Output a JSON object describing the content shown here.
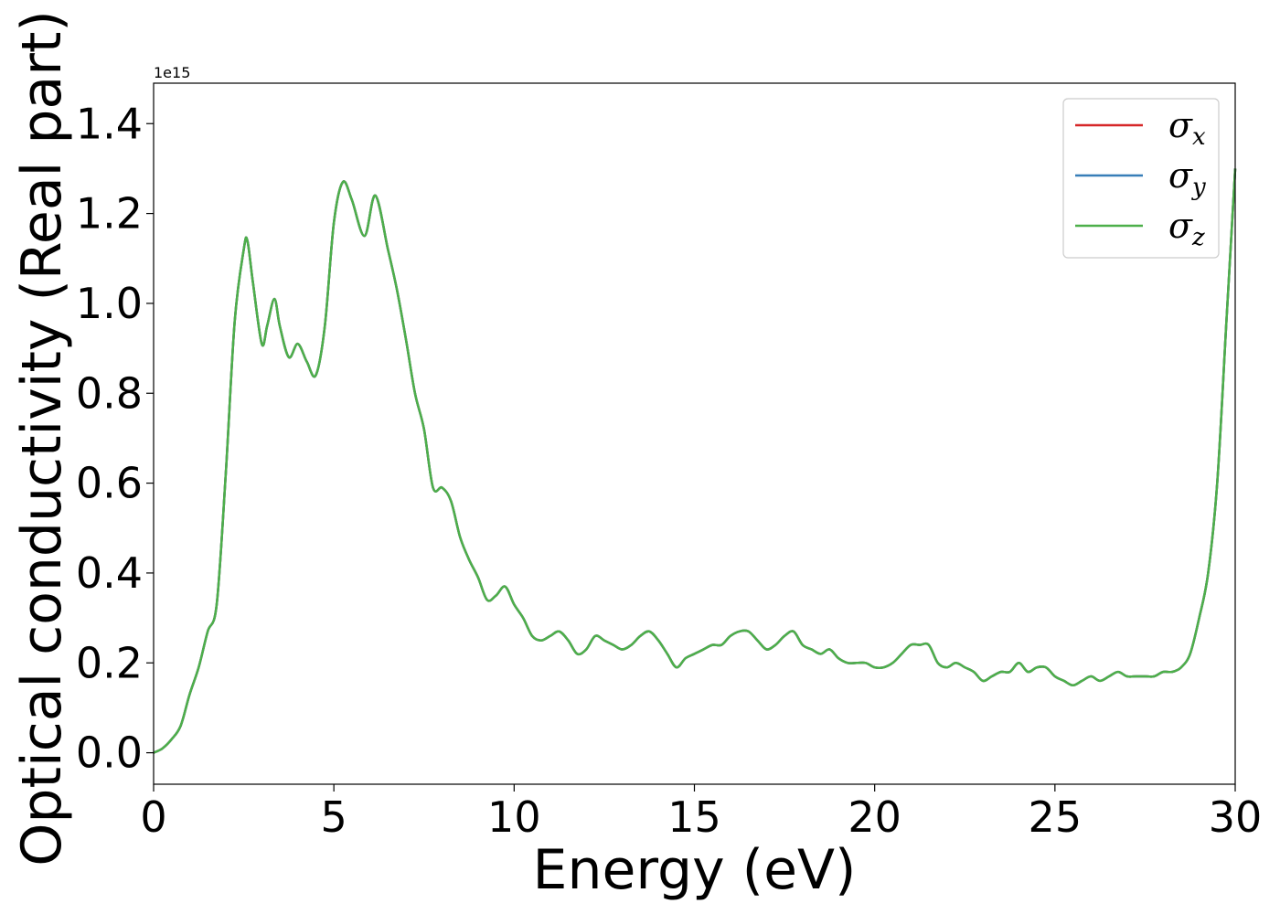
{
  "chart_data": {
    "type": "line",
    "xlabel": "Energy (eV)",
    "ylabel": "Optical conductivity (Real part)",
    "y_offset_label": "1e15",
    "xlim": [
      0,
      30
    ],
    "ylim": [
      -0.07,
      1.49
    ],
    "x_ticks": [
      0,
      5,
      10,
      15,
      20,
      25,
      30
    ],
    "x_tick_labels": [
      "0",
      "5",
      "10",
      "15",
      "20",
      "25",
      "30"
    ],
    "y_ticks": [
      0.0,
      0.2,
      0.4,
      0.6,
      0.8,
      1.0,
      1.2,
      1.4
    ],
    "y_tick_labels": [
      "0.0",
      "0.2",
      "0.4",
      "0.6",
      "0.8",
      "1.0",
      "1.2",
      "1.4"
    ],
    "grid": false,
    "legend_position": "top-right",
    "x": [
      0.0,
      0.25,
      0.5,
      0.75,
      1.0,
      1.25,
      1.5,
      1.75,
      2.0,
      2.25,
      2.5,
      2.6,
      2.75,
      3.0,
      3.15,
      3.35,
      3.5,
      3.75,
      4.0,
      4.25,
      4.5,
      4.75,
      5.0,
      5.25,
      5.5,
      5.85,
      6.15,
      6.5,
      6.75,
      7.0,
      7.25,
      7.5,
      7.75,
      8.0,
      8.25,
      8.5,
      8.75,
      9.0,
      9.25,
      9.5,
      9.75,
      10.0,
      10.25,
      10.5,
      10.75,
      11.0,
      11.25,
      11.5,
      11.75,
      12.0,
      12.25,
      12.5,
      12.75,
      13.0,
      13.25,
      13.5,
      13.75,
      14.0,
      14.25,
      14.5,
      14.75,
      15.0,
      15.25,
      15.5,
      15.75,
      16.0,
      16.25,
      16.5,
      16.75,
      17.0,
      17.25,
      17.5,
      17.75,
      18.0,
      18.25,
      18.5,
      18.75,
      19.0,
      19.25,
      19.5,
      19.75,
      20.0,
      20.25,
      20.5,
      20.75,
      21.0,
      21.25,
      21.5,
      21.75,
      22.0,
      22.25,
      22.5,
      22.75,
      23.0,
      23.25,
      23.5,
      23.75,
      24.0,
      24.25,
      24.5,
      24.75,
      25.0,
      25.25,
      25.5,
      25.75,
      26.0,
      26.25,
      26.5,
      26.75,
      27.0,
      27.25,
      27.5,
      27.75,
      28.0,
      28.25,
      28.5,
      28.75,
      29.0,
      29.25,
      29.5,
      29.75,
      30.0
    ],
    "series": [
      {
        "name": "σ",
        "sub": "x",
        "color": "#d62728",
        "values": [
          0.0,
          0.01,
          0.03,
          0.06,
          0.13,
          0.19,
          0.27,
          0.33,
          0.62,
          0.96,
          1.12,
          1.14,
          1.05,
          0.91,
          0.95,
          1.01,
          0.95,
          0.88,
          0.91,
          0.87,
          0.84,
          0.95,
          1.18,
          1.27,
          1.23,
          1.15,
          1.24,
          1.12,
          1.03,
          0.92,
          0.8,
          0.72,
          0.59,
          0.59,
          0.56,
          0.48,
          0.43,
          0.39,
          0.34,
          0.35,
          0.37,
          0.33,
          0.3,
          0.26,
          0.25,
          0.26,
          0.27,
          0.25,
          0.22,
          0.23,
          0.26,
          0.25,
          0.24,
          0.23,
          0.24,
          0.26,
          0.27,
          0.25,
          0.22,
          0.19,
          0.21,
          0.22,
          0.23,
          0.24,
          0.24,
          0.26,
          0.27,
          0.27,
          0.25,
          0.23,
          0.24,
          0.26,
          0.27,
          0.24,
          0.23,
          0.22,
          0.23,
          0.21,
          0.2,
          0.2,
          0.2,
          0.19,
          0.19,
          0.2,
          0.22,
          0.24,
          0.24,
          0.24,
          0.2,
          0.19,
          0.2,
          0.19,
          0.18,
          0.16,
          0.17,
          0.18,
          0.18,
          0.2,
          0.18,
          0.19,
          0.19,
          0.17,
          0.16,
          0.15,
          0.16,
          0.17,
          0.16,
          0.17,
          0.18,
          0.17,
          0.17,
          0.17,
          0.17,
          0.18,
          0.18,
          0.19,
          0.22,
          0.3,
          0.4,
          0.6,
          0.95,
          1.3
        ]
      },
      {
        "name": "σ",
        "sub": "y",
        "color": "#377eb8",
        "values": [
          0.0,
          0.01,
          0.03,
          0.06,
          0.13,
          0.19,
          0.27,
          0.33,
          0.62,
          0.96,
          1.12,
          1.14,
          1.05,
          0.91,
          0.95,
          1.01,
          0.95,
          0.88,
          0.91,
          0.87,
          0.84,
          0.95,
          1.18,
          1.27,
          1.23,
          1.15,
          1.24,
          1.12,
          1.03,
          0.92,
          0.8,
          0.72,
          0.59,
          0.59,
          0.56,
          0.48,
          0.43,
          0.39,
          0.34,
          0.35,
          0.37,
          0.33,
          0.3,
          0.26,
          0.25,
          0.26,
          0.27,
          0.25,
          0.22,
          0.23,
          0.26,
          0.25,
          0.24,
          0.23,
          0.24,
          0.26,
          0.27,
          0.25,
          0.22,
          0.19,
          0.21,
          0.22,
          0.23,
          0.24,
          0.24,
          0.26,
          0.27,
          0.27,
          0.25,
          0.23,
          0.24,
          0.26,
          0.27,
          0.24,
          0.23,
          0.22,
          0.23,
          0.21,
          0.2,
          0.2,
          0.2,
          0.19,
          0.19,
          0.2,
          0.22,
          0.24,
          0.24,
          0.24,
          0.2,
          0.19,
          0.2,
          0.19,
          0.18,
          0.16,
          0.17,
          0.18,
          0.18,
          0.2,
          0.18,
          0.19,
          0.19,
          0.17,
          0.16,
          0.15,
          0.16,
          0.17,
          0.16,
          0.17,
          0.18,
          0.17,
          0.17,
          0.17,
          0.17,
          0.18,
          0.18,
          0.19,
          0.22,
          0.3,
          0.4,
          0.6,
          0.95,
          1.3
        ]
      },
      {
        "name": "σ",
        "sub": "z",
        "color": "#4daf4a",
        "values": [
          0.0,
          0.01,
          0.03,
          0.06,
          0.13,
          0.19,
          0.27,
          0.33,
          0.62,
          0.96,
          1.12,
          1.14,
          1.05,
          0.91,
          0.95,
          1.01,
          0.95,
          0.88,
          0.91,
          0.87,
          0.84,
          0.95,
          1.18,
          1.27,
          1.23,
          1.15,
          1.24,
          1.12,
          1.03,
          0.92,
          0.8,
          0.72,
          0.59,
          0.59,
          0.56,
          0.48,
          0.43,
          0.39,
          0.34,
          0.35,
          0.37,
          0.33,
          0.3,
          0.26,
          0.25,
          0.26,
          0.27,
          0.25,
          0.22,
          0.23,
          0.26,
          0.25,
          0.24,
          0.23,
          0.24,
          0.26,
          0.27,
          0.25,
          0.22,
          0.19,
          0.21,
          0.22,
          0.23,
          0.24,
          0.24,
          0.26,
          0.27,
          0.27,
          0.25,
          0.23,
          0.24,
          0.26,
          0.27,
          0.24,
          0.23,
          0.22,
          0.23,
          0.21,
          0.2,
          0.2,
          0.2,
          0.19,
          0.19,
          0.2,
          0.22,
          0.24,
          0.24,
          0.24,
          0.2,
          0.19,
          0.2,
          0.19,
          0.18,
          0.16,
          0.17,
          0.18,
          0.18,
          0.2,
          0.18,
          0.19,
          0.19,
          0.17,
          0.16,
          0.15,
          0.16,
          0.17,
          0.16,
          0.17,
          0.18,
          0.17,
          0.17,
          0.17,
          0.17,
          0.18,
          0.18,
          0.19,
          0.22,
          0.3,
          0.4,
          0.6,
          0.95,
          1.3
        ]
      }
    ]
  }
}
